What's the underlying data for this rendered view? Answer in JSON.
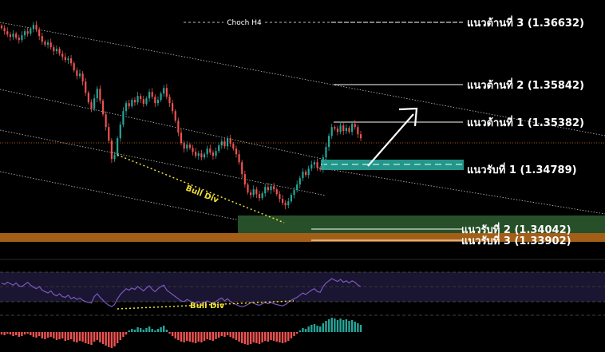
{
  "chart_data": {
    "type": "candlestick",
    "title": "",
    "colors": {
      "background": "#000000",
      "bull_candle": "#26a69a",
      "bear_candle": "#ef5350",
      "resistance_line": "#ffffff",
      "support_zone": "#26a69a",
      "demand_zone": "#27502a",
      "strong_support_zone": "#a35f17",
      "divergence": "#f2df3a",
      "rsi_line": "#7e57c2",
      "hist_up": "#26a69a",
      "hist_down": "#ef5350"
    },
    "price_axis": {
      "min": 1.3378,
      "max": 1.368
    },
    "levels": [
      {
        "id": "r3",
        "label": "แนวต้านที่ 3 (1.36632)",
        "price": 1.36632,
        "kind": "resistance"
      },
      {
        "id": "r2",
        "label": "แนวต้านที่ 2 (1.35842)",
        "price": 1.35842,
        "kind": "resistance"
      },
      {
        "id": "r1",
        "label": "แนวต้านที่ 1 (1.35382)",
        "price": 1.35382,
        "kind": "resistance"
      },
      {
        "id": "s1",
        "label": "แนวรับที่ 1 (1.34789)",
        "price": 1.34789,
        "kind": "support"
      },
      {
        "id": "s2",
        "label": "แนวรับที่ 2 (1.34042)",
        "price": 1.34042,
        "kind": "support"
      },
      {
        "id": "s3",
        "label": "แนวรับที่ 3 (1.33902)",
        "price": 1.33902,
        "kind": "support"
      }
    ],
    "annotations": {
      "choch": "Choch H4",
      "bull_div_price": "Bull Div",
      "bull_div_rsi": "Bull Div"
    },
    "candles_close": [
      1.3656,
      1.3652,
      1.3648,
      1.3645,
      1.3649,
      1.3644,
      1.3641,
      1.3647,
      1.3652,
      1.3649,
      1.3655,
      1.366,
      1.3654,
      1.3646,
      1.3639,
      1.3635,
      1.3638,
      1.3632,
      1.3627,
      1.363,
      1.3624,
      1.362,
      1.3616,
      1.3618,
      1.3612,
      1.3603,
      1.3596,
      1.3599,
      1.3589,
      1.3575,
      1.3563,
      1.3555,
      1.3568,
      1.358,
      1.3565,
      1.3548,
      1.3532,
      1.3515,
      1.3492,
      1.3497,
      1.3518,
      1.3535,
      1.3552,
      1.3562,
      1.3558,
      1.3566,
      1.3563,
      1.3571,
      1.3567,
      1.3561,
      1.3568,
      1.3576,
      1.357,
      1.3562,
      1.3566,
      1.3574,
      1.3581,
      1.357,
      1.3562,
      1.3552,
      1.354,
      1.3525,
      1.3512,
      1.3505,
      1.351,
      1.3506,
      1.3501,
      1.3496,
      1.3499,
      1.3494,
      1.3498,
      1.3505,
      1.35,
      1.3496,
      1.3502,
      1.3509,
      1.3514,
      1.3508,
      1.3518,
      1.3511,
      1.3505,
      1.3498,
      1.3488,
      1.3473,
      1.346,
      1.345,
      1.3447,
      1.3454,
      1.3448,
      1.3443,
      1.3449,
      1.3457,
      1.3453,
      1.3458,
      1.3454,
      1.3448,
      1.3442,
      1.3437,
      1.3434,
      1.3439,
      1.3447,
      1.3453,
      1.346,
      1.3468,
      1.3476,
      1.3472,
      1.348,
      1.3485,
      1.3488,
      1.3481,
      1.3479,
      1.3494,
      1.3507,
      1.3521,
      1.3532,
      1.353,
      1.3526,
      1.3534,
      1.3527,
      1.3531,
      1.3526,
      1.3536,
      1.3532,
      1.3523,
      1.3518
    ],
    "rsi_close": [
      60,
      58,
      61,
      59,
      57,
      60,
      56,
      55,
      58,
      61,
      57,
      54,
      52,
      55,
      50,
      48,
      46,
      49,
      44,
      42,
      45,
      41,
      40,
      43,
      38,
      40,
      37,
      39,
      36,
      34,
      33,
      32,
      41,
      45,
      40,
      36,
      32,
      29,
      27,
      30,
      38,
      44,
      48,
      52,
      50,
      53,
      51,
      55,
      52,
      49,
      53,
      56,
      51,
      48,
      52,
      55,
      57,
      50,
      47,
      44,
      41,
      38,
      35,
      34,
      37,
      35,
      33,
      32,
      34,
      31,
      33,
      35,
      33,
      31,
      34,
      37,
      39,
      35,
      38,
      34,
      32,
      30,
      28,
      27,
      28,
      30,
      33,
      32,
      30,
      29,
      31,
      33,
      31,
      33,
      31,
      30,
      29,
      28,
      30,
      33,
      36,
      38,
      40,
      43,
      46,
      44,
      47,
      50,
      52,
      48,
      47,
      55,
      60,
      63,
      66,
      64,
      62,
      65,
      61,
      63,
      60,
      63,
      61,
      57,
      55
    ],
    "histogram": [
      -0.3,
      -0.4,
      -0.2,
      -0.3,
      -0.5,
      -0.4,
      -0.6,
      -0.5,
      -0.3,
      -0.2,
      -0.4,
      -0.6,
      -0.7,
      -0.5,
      -0.8,
      -0.9,
      -0.7,
      -0.6,
      -0.8,
      -1.0,
      -0.9,
      -0.8,
      -1.1,
      -1.0,
      -0.9,
      -1.2,
      -1.3,
      -1.1,
      -1.2,
      -1.4,
      -1.5,
      -1.6,
      -1.2,
      -1.0,
      -1.3,
      -1.5,
      -1.7,
      -1.9,
      -2.0,
      -1.8,
      -1.4,
      -1.0,
      -0.6,
      -0.3,
      0.2,
      0.4,
      0.3,
      0.6,
      0.5,
      0.3,
      0.5,
      0.7,
      0.4,
      0.2,
      0.4,
      0.6,
      0.8,
      0.3,
      -0.2,
      -0.5,
      -0.8,
      -1.0,
      -1.2,
      -1.3,
      -1.1,
      -1.2,
      -1.3,
      -1.4,
      -1.2,
      -1.3,
      -1.1,
      -0.9,
      -1.0,
      -1.1,
      -0.9,
      -0.7,
      -0.5,
      -0.6,
      -0.4,
      -0.6,
      -0.8,
      -1.0,
      -1.2,
      -1.4,
      -1.5,
      -1.6,
      -1.5,
      -1.3,
      -1.4,
      -1.5,
      -1.3,
      -1.1,
      -1.2,
      -1.0,
      -1.1,
      -1.2,
      -1.3,
      -1.4,
      -1.3,
      -1.1,
      -0.8,
      -0.5,
      -0.2,
      0.2,
      0.5,
      0.4,
      0.7,
      0.9,
      1.0,
      0.8,
      0.7,
      1.1,
      1.4,
      1.6,
      1.8,
      1.7,
      1.5,
      1.7,
      1.5,
      1.6,
      1.4,
      1.5,
      1.3,
      1.1,
      0.9
    ]
  }
}
